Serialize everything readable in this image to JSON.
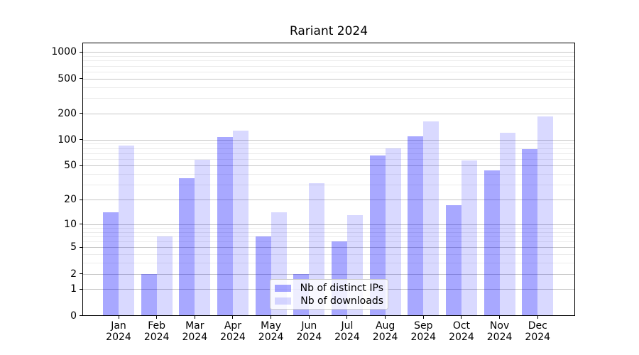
{
  "title": "Rariant 2024",
  "colors": {
    "bar_distinct_ips": "rgba(0,0,255,0.34)",
    "bar_downloads": "rgba(0,0,255,0.15)",
    "grid_major": "#c6c6c6",
    "grid_minor": "#ebebeb",
    "spine": "#000000"
  },
  "legend": {
    "items": [
      {
        "label": "Nb of distinct IPs",
        "color": "rgba(0,0,255,0.34)"
      },
      {
        "label": "Nb of downloads",
        "color": "rgba(0,0,255,0.15)"
      }
    ]
  },
  "chart_data": {
    "type": "bar",
    "title": "Rariant 2024",
    "xlabel": "",
    "ylabel": "",
    "categories": [
      "Jan 2024",
      "Feb 2024",
      "Mar 2024",
      "Apr 2024",
      "May 2024",
      "Jun 2024",
      "Jul 2024",
      "Aug 2024",
      "Sep 2024",
      "Oct 2024",
      "Nov 2024",
      "Dec 2024"
    ],
    "series": [
      {
        "name": "Nb of distinct IPs",
        "values": [
          14,
          2,
          36,
          108,
          7,
          2,
          6,
          66,
          110,
          17,
          44,
          78
        ]
      },
      {
        "name": "Nb of downloads",
        "values": [
          86,
          7,
          59,
          127,
          14,
          31,
          13,
          80,
          162,
          58,
          120,
          185
        ]
      }
    ],
    "yscale": "log1p",
    "yticks": [
      0,
      1,
      2,
      5,
      10,
      20,
      50,
      100,
      200,
      500,
      1000
    ],
    "yticklabels": [
      "0",
      "1",
      "2",
      "5",
      "10",
      "20",
      "50",
      "100",
      "200",
      "500",
      "1000"
    ],
    "ylim": [
      0,
      1300
    ],
    "grid": true,
    "legend_position": "lower center"
  }
}
